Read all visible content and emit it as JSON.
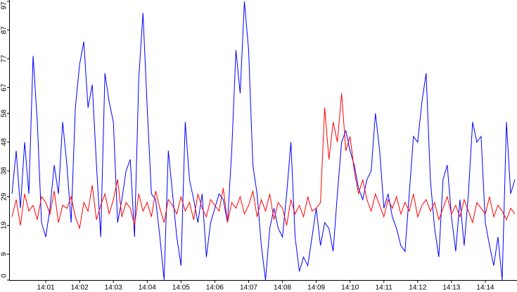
{
  "chart_data": {
    "type": "line",
    "categories": [
      null,
      null,
      null,
      null,
      null,
      null,
      null,
      null,
      "14:01",
      null,
      null,
      null,
      null,
      null,
      null,
      null,
      "14:02",
      null,
      null,
      null,
      null,
      null,
      null,
      null,
      "14:03",
      null,
      null,
      null,
      null,
      null,
      null,
      null,
      "14:04",
      null,
      null,
      null,
      null,
      null,
      null,
      null,
      "14:05",
      null,
      null,
      null,
      null,
      null,
      null,
      null,
      "14:06",
      null,
      null,
      null,
      null,
      null,
      null,
      null,
      "14:07",
      null,
      null,
      null,
      null,
      null,
      null,
      null,
      "14:08",
      null,
      null,
      null,
      null,
      null,
      null,
      null,
      "14:09",
      null,
      null,
      null,
      null,
      null,
      null,
      null,
      "14:10",
      null,
      null,
      null,
      null,
      null,
      null,
      null,
      "14:11",
      null,
      null,
      null,
      null,
      null,
      null,
      null,
      "14:12",
      null,
      null,
      null,
      null,
      null,
      null,
      null,
      "14:13",
      null,
      null,
      null,
      null,
      null,
      null,
      null,
      "14:14",
      null,
      null,
      null,
      null,
      null,
      null,
      null
    ],
    "series": [
      {
        "color": "#0000ff",
        "values": [
          30,
          45,
          25,
          48,
          30,
          78,
          55,
          20,
          15,
          25,
          40,
          30,
          55,
          40,
          20,
          60,
          75,
          83,
          60,
          68,
          40,
          15,
          72,
          62,
          55,
          20,
          28,
          38,
          42,
          15,
          70,
          93,
          60,
          30,
          28,
          15,
          0,
          45,
          30,
          15,
          5,
          55,
          35,
          28,
          20,
          30,
          8,
          20,
          25,
          30,
          28,
          20,
          45,
          80,
          65,
          97,
          80,
          40,
          30,
          12,
          0,
          18,
          25,
          18,
          15,
          30,
          48,
          15,
          3,
          8,
          5,
          15,
          25,
          12,
          20,
          18,
          10,
          30,
          48,
          52,
          45,
          40,
          32,
          28,
          35,
          38,
          58,
          45,
          25,
          30,
          22,
          18,
          12,
          10,
          30,
          50,
          48,
          62,
          72,
          35,
          18,
          8,
          35,
          40,
          22,
          10,
          28,
          12,
          30,
          55,
          48,
          50,
          20,
          12,
          5,
          15,
          0,
          55,
          30,
          35
        ]
      },
      {
        "color": "#ff0000",
        "values": [
          22,
          28,
          19,
          30,
          24,
          26,
          21,
          29,
          27,
          23,
          31,
          20,
          26,
          25,
          29,
          22,
          18,
          27,
          24,
          33,
          21,
          26,
          30,
          23,
          28,
          35,
          22,
          27,
          25,
          19,
          30,
          24,
          27,
          22,
          31,
          25,
          20,
          28,
          26,
          23,
          29,
          24,
          27,
          21,
          30,
          25,
          22,
          28,
          26,
          24,
          32,
          20,
          27,
          25,
          29,
          23,
          26,
          31,
          22,
          28,
          24,
          30,
          21,
          27,
          25,
          19,
          28,
          23,
          26,
          22,
          29,
          24,
          25,
          27,
          60,
          42,
          55,
          48,
          65,
          45,
          50,
          38,
          30,
          35,
          28,
          24,
          30,
          26,
          22,
          28,
          25,
          29,
          23,
          27,
          24,
          30,
          22,
          26,
          28,
          24,
          27,
          21,
          25,
          29,
          23,
          26,
          22,
          28,
          24,
          20,
          27,
          25,
          23,
          29,
          22,
          26,
          24,
          21,
          25,
          23
        ]
      }
    ],
    "ylim": [
      0,
      97
    ],
    "yticks": [
      0,
      9,
      19,
      29,
      38,
      48,
      58,
      67,
      77,
      87,
      97
    ]
  }
}
